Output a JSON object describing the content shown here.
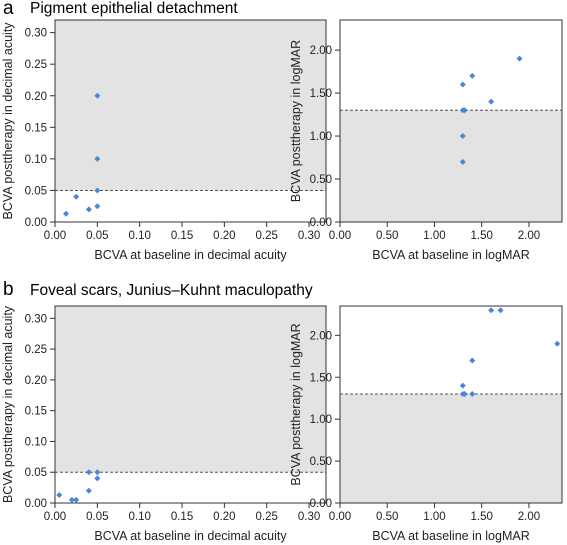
{
  "panels": [
    {
      "label": "a",
      "title": "Pigment epithelial detachment"
    },
    {
      "label": "b",
      "title": "Foveal scars, Junius–Kuhnt maculopathy"
    }
  ],
  "colors": {
    "point": "#4a86d8",
    "shade": "#e3e3e3",
    "axis": "#333333",
    "threshold": "#555555"
  },
  "chart_data": [
    {
      "type": "scatter",
      "panel": "a",
      "xlabel": "BCVA at baseline in decimal acuity",
      "ylabel": "BCVA posttherapy in decimal acuity",
      "xlim": [
        0,
        0.32
      ],
      "ylim": [
        0,
        0.32
      ],
      "xticks": [
        0,
        0.05,
        0.1,
        0.15,
        0.2,
        0.25,
        0.3
      ],
      "yticks": [
        0,
        0.05,
        0.1,
        0.15,
        0.2,
        0.25,
        0.3
      ],
      "tick_labels": [
        "0.00",
        "0.05",
        "0.10",
        "0.15",
        "0.20",
        "0.25",
        "0.30"
      ],
      "threshold": 0.05,
      "shade": "above",
      "points": [
        [
          0.013,
          0.013
        ],
        [
          0.025,
          0.04
        ],
        [
          0.04,
          0.02
        ],
        [
          0.05,
          0.025
        ],
        [
          0.05,
          0.05
        ],
        [
          0.05,
          0.1
        ],
        [
          0.05,
          0.2
        ]
      ]
    },
    {
      "type": "scatter",
      "panel": "a",
      "xlabel": "BCVA at baseline in logMAR",
      "ylabel": "BCVA posttherapy in logMAR",
      "xlim": [
        0,
        2.35
      ],
      "ylim": [
        0,
        2.35
      ],
      "xticks": [
        0,
        0.5,
        1.0,
        1.5,
        2.0
      ],
      "yticks": [
        0,
        0.5,
        1.0,
        1.5,
        2.0
      ],
      "tick_labels": [
        "0.00",
        "0.50",
        "1.00",
        "1.50",
        "2.00"
      ],
      "threshold": 1.3,
      "shade": "below",
      "points": [
        [
          1.3,
          1.3
        ],
        [
          1.3,
          1.0
        ],
        [
          1.3,
          0.7
        ],
        [
          1.3,
          1.6
        ],
        [
          1.32,
          1.3
        ],
        [
          1.4,
          1.7
        ],
        [
          1.6,
          1.4
        ],
        [
          1.9,
          1.9
        ]
      ]
    },
    {
      "type": "scatter",
      "panel": "b",
      "xlabel": "BCVA at baseline in decimal acuity",
      "ylabel": "BCVA posttherapy in decimal acuity",
      "xlim": [
        0,
        0.32
      ],
      "ylim": [
        0,
        0.32
      ],
      "xticks": [
        0,
        0.05,
        0.1,
        0.15,
        0.2,
        0.25,
        0.3
      ],
      "yticks": [
        0,
        0.05,
        0.1,
        0.15,
        0.2,
        0.25,
        0.3
      ],
      "tick_labels": [
        "0.00",
        "0.05",
        "0.10",
        "0.15",
        "0.20",
        "0.25",
        "0.30"
      ],
      "threshold": 0.05,
      "shade": "above",
      "points": [
        [
          0.005,
          0.013
        ],
        [
          0.02,
          0.005
        ],
        [
          0.025,
          0.005
        ],
        [
          0.04,
          0.02
        ],
        [
          0.04,
          0.05
        ],
        [
          0.05,
          0.05
        ],
        [
          0.05,
          0.04
        ]
      ]
    },
    {
      "type": "scatter",
      "panel": "b",
      "xlabel": "BCVA at baseline in logMAR",
      "ylabel": "BCVA posttherapy in logMAR",
      "xlim": [
        0,
        2.35
      ],
      "ylim": [
        0,
        2.35
      ],
      "xticks": [
        0,
        0.5,
        1.0,
        1.5,
        2.0
      ],
      "yticks": [
        0,
        0.5,
        1.0,
        1.5,
        2.0
      ],
      "tick_labels": [
        "0.00",
        "0.50",
        "1.00",
        "1.50",
        "2.00"
      ],
      "threshold": 1.3,
      "shade": "below",
      "points": [
        [
          1.3,
          1.3
        ],
        [
          1.3,
          1.4
        ],
        [
          1.32,
          1.3
        ],
        [
          1.4,
          1.3
        ],
        [
          1.4,
          1.7
        ],
        [
          1.6,
          2.3
        ],
        [
          1.7,
          2.3
        ],
        [
          2.3,
          1.9
        ]
      ]
    }
  ]
}
